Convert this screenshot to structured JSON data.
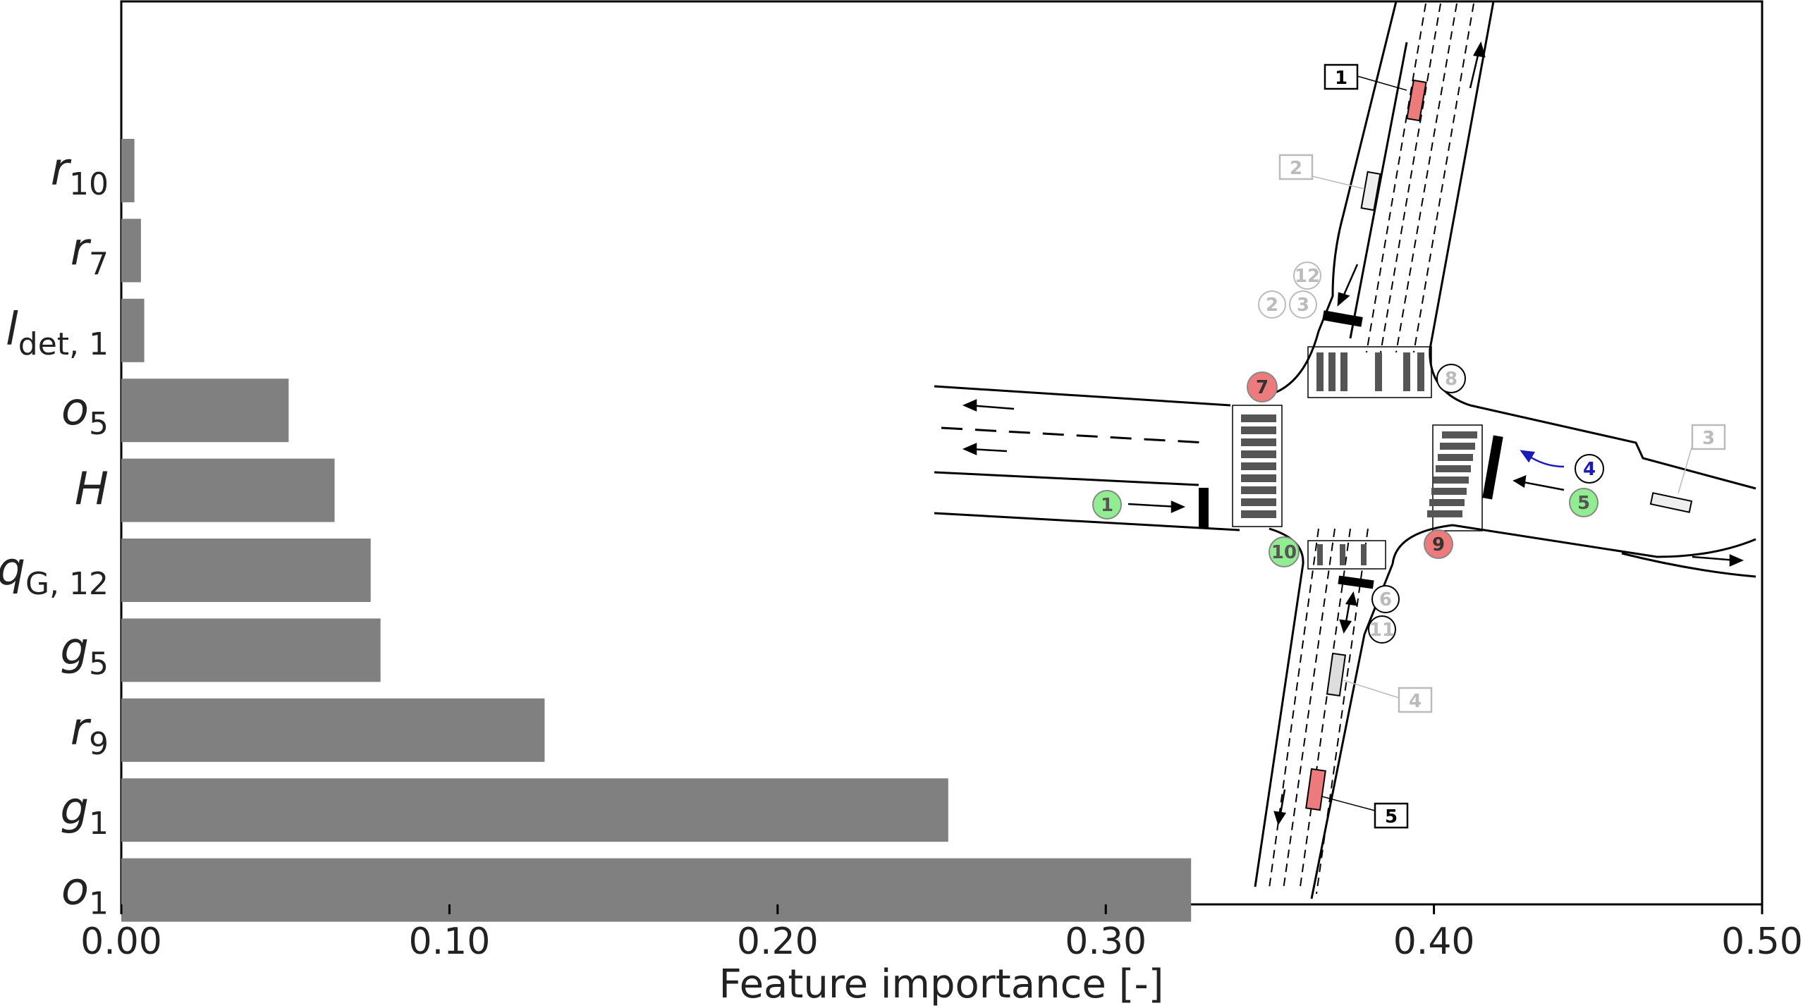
{
  "chart_data": {
    "type": "bar",
    "orientation": "horizontal",
    "xlabel": "Feature importance [-]",
    "xlim": [
      0,
      0.5
    ],
    "xticks": [
      "0.00",
      "0.10",
      "0.20",
      "0.30",
      "0.40",
      "0.50"
    ],
    "categories": [
      {
        "base": "r",
        "sub": "10"
      },
      {
        "base": "r",
        "sub": "7"
      },
      {
        "base": "l",
        "sub": "det, 1"
      },
      {
        "base": "o",
        "sub": "5"
      },
      {
        "base": "H",
        "sub": ""
      },
      {
        "base": "q",
        "sub": "G, 12"
      },
      {
        "base": "g",
        "sub": "5"
      },
      {
        "base": "r",
        "sub": "9"
      },
      {
        "base": "g",
        "sub": "1"
      },
      {
        "base": "o",
        "sub": "1"
      }
    ],
    "values": [
      0.004,
      0.006,
      0.007,
      0.051,
      0.065,
      0.076,
      0.079,
      0.129,
      0.252,
      0.326
    ],
    "bar_color": "#808080",
    "grid": false
  },
  "inset_diagram": {
    "detector_labels": [
      "1",
      "2",
      "3",
      "4",
      "5"
    ],
    "signal_labels": [
      "1",
      "2",
      "3",
      "4",
      "5",
      "6",
      "7",
      "8",
      "9",
      "10",
      "11",
      "12"
    ],
    "colors": {
      "red": "#ee7b7b",
      "green": "#90ee90",
      "gray": "#bbbbbb",
      "blue": "#1a1ab8",
      "dark": "#000000"
    }
  }
}
